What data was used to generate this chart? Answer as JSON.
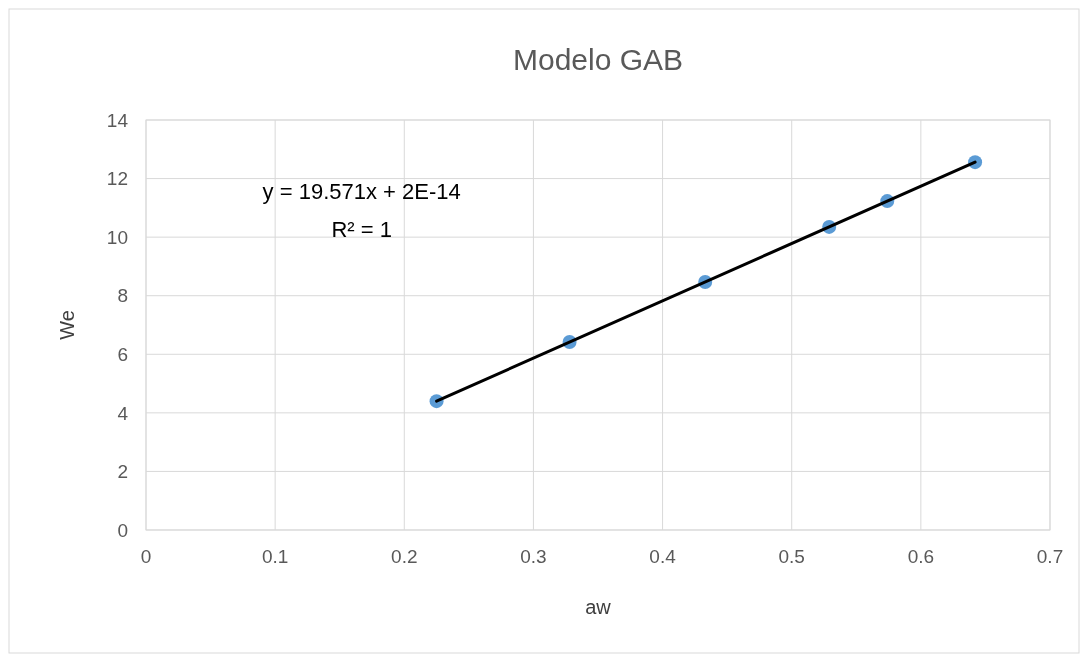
{
  "chart_data": {
    "type": "scatter",
    "title": "Modelo GAB",
    "xlabel": "aw",
    "ylabel": "We",
    "series": [
      {
        "color": "#5b9bd5",
        "marker": "circle",
        "x": [
          0.225,
          0.328,
          0.433,
          0.529,
          0.574,
          0.642
        ],
        "values": [
          4.4,
          6.42,
          8.47,
          10.35,
          11.23,
          12.56
        ]
      },
      {
        "type": "line",
        "color": "#000000",
        "x": [
          0.225,
          0.642
        ],
        "values": [
          4.4,
          12.56
        ]
      }
    ],
    "annotations": [
      "y = 19.571x + 2E-14",
      "R² = 1"
    ],
    "xlim": [
      0,
      0.7
    ],
    "xticks": [
      0,
      0.1,
      0.2,
      0.3,
      0.4,
      0.5,
      0.6,
      0.7
    ],
    "ylim": [
      0,
      14
    ],
    "yticks": [
      0,
      2,
      4,
      6,
      8,
      10,
      12,
      14
    ],
    "grid": true
  }
}
